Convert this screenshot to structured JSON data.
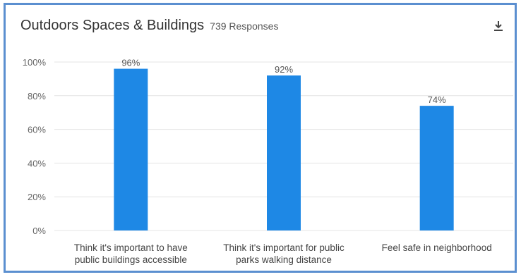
{
  "header": {
    "title": "Outdoors Spaces & Buildings",
    "responses": "739 Responses"
  },
  "icons": {
    "download": "download-icon"
  },
  "colors": {
    "bar": "#1e88e5",
    "frame": "#5b8fd0",
    "grid": "#e4e4e4"
  },
  "chart_data": {
    "type": "bar",
    "categories": [
      [
        "Think it's important to have",
        "public buildings accessible"
      ],
      [
        "Think it's important for public",
        "parks walking distance"
      ],
      [
        "Feel safe in neighborhood"
      ]
    ],
    "values": [
      96,
      92,
      74
    ],
    "data_labels": [
      "96%",
      "92%",
      "74%"
    ],
    "ylim": [
      0,
      100
    ],
    "yticks": [
      0,
      20,
      40,
      60,
      80,
      100
    ],
    "ytick_labels": [
      "0%",
      "20%",
      "40%",
      "60%",
      "80%",
      "100%"
    ],
    "grid": true,
    "legend": "none"
  }
}
